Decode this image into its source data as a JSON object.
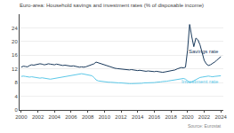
{
  "chart_data": {
    "type": "line",
    "title": "Euro-area: Household savings and investment rates (% of disposable income)",
    "annotations": [
      "Source: Eurostat"
    ],
    "x": [
      2000.0,
      2000.25,
      2000.5,
      2000.75,
      2001.0,
      2001.25,
      2001.5,
      2001.75,
      2002.0,
      2002.25,
      2002.5,
      2002.75,
      2003.0,
      2003.25,
      2003.5,
      2003.75,
      2004.0,
      2004.25,
      2004.5,
      2004.75,
      2005.0,
      2005.25,
      2005.5,
      2005.75,
      2006.0,
      2006.25,
      2006.5,
      2006.75,
      2007.0,
      2007.25,
      2007.5,
      2007.75,
      2008.0,
      2008.25,
      2008.5,
      2008.75,
      2009.0,
      2009.25,
      2009.5,
      2009.75,
      2010.0,
      2010.25,
      2010.5,
      2010.75,
      2011.0,
      2011.25,
      2011.5,
      2011.75,
      2012.0,
      2012.25,
      2012.5,
      2012.75,
      2013.0,
      2013.25,
      2013.5,
      2013.75,
      2014.0,
      2014.25,
      2014.5,
      2014.75,
      2015.0,
      2015.25,
      2015.5,
      2015.75,
      2016.0,
      2016.25,
      2016.5,
      2016.75,
      2017.0,
      2017.25,
      2017.5,
      2017.75,
      2018.0,
      2018.25,
      2018.5,
      2018.75,
      2019.0,
      2019.25,
      2019.5,
      2019.75,
      2020.0,
      2020.25,
      2020.5,
      2020.75,
      2021.0,
      2021.25,
      2021.5,
      2021.75,
      2022.0,
      2022.25,
      2022.5,
      2022.75,
      2023.0,
      2023.25,
      2023.5,
      2023.75,
      2024.0
    ],
    "series": [
      {
        "name": "Savings rate",
        "color": "#1a3a5c",
        "values": [
          12.5,
          12.8,
          12.7,
          12.6,
          13.0,
          13.2,
          13.1,
          13.3,
          13.4,
          13.5,
          13.4,
          13.2,
          13.3,
          13.5,
          13.4,
          13.3,
          13.2,
          13.4,
          13.3,
          13.2,
          13.0,
          13.1,
          13.0,
          12.9,
          12.8,
          12.9,
          12.7,
          12.6,
          12.5,
          12.6,
          12.5,
          12.6,
          12.8,
          13.0,
          13.2,
          13.5,
          14.0,
          13.8,
          13.5,
          13.3,
          13.0,
          12.8,
          12.6,
          12.4,
          12.3,
          12.2,
          12.1,
          12.0,
          12.1,
          12.0,
          11.9,
          11.8,
          11.7,
          11.8,
          11.7,
          11.6,
          11.5,
          11.6,
          11.5,
          11.4,
          11.3,
          11.4,
          11.3,
          11.2,
          11.2,
          11.3,
          11.2,
          11.1,
          11.0,
          11.1,
          11.2,
          11.3,
          11.5,
          11.6,
          11.7,
          12.0,
          12.2,
          12.4,
          12.3,
          12.5,
          17.5,
          25.0,
          21.5,
          18.5,
          21.0,
          20.5,
          19.0,
          17.0,
          14.5,
          13.5,
          13.0,
          13.2,
          13.5,
          14.0,
          14.5,
          15.0,
          15.6
        ]
      },
      {
        "name": "Investment rate",
        "color": "#5bc8e8",
        "values": [
          9.8,
          9.9,
          9.8,
          9.7,
          9.6,
          9.7,
          9.6,
          9.5,
          9.4,
          9.3,
          9.4,
          9.3,
          9.2,
          9.1,
          9.0,
          9.1,
          9.2,
          9.3,
          9.5,
          9.6,
          9.7,
          9.8,
          9.9,
          10.0,
          10.1,
          10.2,
          10.3,
          10.4,
          10.5,
          10.6,
          10.5,
          10.4,
          10.3,
          10.2,
          10.0,
          9.5,
          8.8,
          8.5,
          8.4,
          8.3,
          8.2,
          8.2,
          8.1,
          8.1,
          8.0,
          8.0,
          7.9,
          7.9,
          7.9,
          7.8,
          7.8,
          7.7,
          7.7,
          7.7,
          7.7,
          7.8,
          7.8,
          7.8,
          7.8,
          7.9,
          7.9,
          7.9,
          8.0,
          8.0,
          8.0,
          8.1,
          8.1,
          8.2,
          8.3,
          8.3,
          8.4,
          8.5,
          8.6,
          8.7,
          8.8,
          8.9,
          9.0,
          9.1,
          9.2,
          9.0,
          8.5,
          8.0,
          8.2,
          8.5,
          9.0,
          9.3,
          9.5,
          9.6,
          9.7,
          9.8,
          9.9,
          9.8,
          9.7,
          9.8,
          9.9,
          10.0,
          10.0
        ]
      }
    ],
    "xlim": [
      1999.8,
      2024.3
    ],
    "xticks": [
      2000,
      2002,
      2004,
      2006,
      2008,
      2010,
      2012,
      2014,
      2016,
      2018,
      2020,
      2022,
      2024
    ],
    "ylim": [
      0,
      28
    ],
    "yticks": [
      0,
      4,
      8,
      12,
      16,
      20,
      24
    ],
    "grid": true
  }
}
